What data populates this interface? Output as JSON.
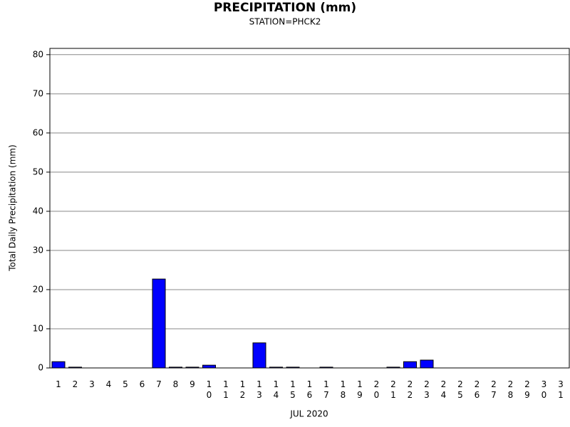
{
  "chart_data": {
    "type": "bar",
    "title": "PRECIPITATION (mm)",
    "subtitle": "STATION=PHCK2",
    "x_label": "JUL 2020",
    "y_label": "Total Daily Precipitation (mm)",
    "categories": [
      "1",
      "2",
      "3",
      "4",
      "5",
      "6",
      "7",
      "8",
      "9",
      "10",
      "11",
      "12",
      "13",
      "14",
      "15",
      "16",
      "17",
      "18",
      "19",
      "20",
      "21",
      "22",
      "23",
      "24",
      "25",
      "26",
      "27",
      "28",
      "29",
      "30",
      "31"
    ],
    "values": [
      1.6,
      0.2,
      0,
      0,
      0,
      0,
      22.7,
      0.2,
      0.2,
      0.7,
      0,
      0,
      6.4,
      0.2,
      0.2,
      0,
      0.2,
      0,
      0,
      0,
      0.2,
      1.6,
      2.0,
      0,
      0,
      0,
      0,
      0,
      0,
      0,
      0
    ],
    "color": "#0000ff",
    "ylim": [
      0,
      81.6
    ],
    "yticks": [
      0,
      10,
      20,
      30,
      40,
      50,
      60,
      70,
      80
    ],
    "grid": true
  }
}
